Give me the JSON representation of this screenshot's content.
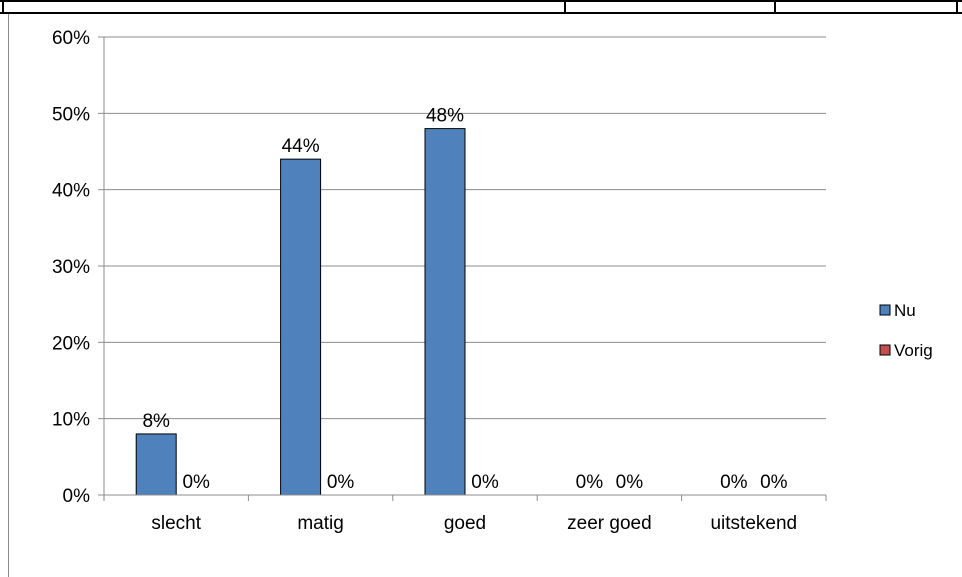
{
  "chart_data": {
    "type": "bar",
    "categories": [
      "slecht",
      "matig",
      "goed",
      "zeer goed",
      "uitstekend"
    ],
    "series": [
      {
        "name": "Nu",
        "values": [
          8,
          44,
          48,
          0,
          0
        ],
        "color": "#4f81bd"
      },
      {
        "name": "Vorig",
        "values": [
          0,
          0,
          0,
          0,
          0
        ],
        "color": "#c0504d"
      }
    ],
    "data_labels": {
      "Nu": [
        "8%",
        "44%",
        "48%",
        "0%",
        "0%"
      ],
      "Vorig": [
        "0%",
        "0%",
        "0%",
        "0%",
        "0%"
      ]
    },
    "yticks": [
      "0%",
      "10%",
      "20%",
      "30%",
      "40%",
      "50%",
      "60%"
    ],
    "ylim": [
      0,
      60
    ],
    "grid": true,
    "legend_position": "right",
    "title": "",
    "xlabel": "",
    "ylabel": ""
  }
}
